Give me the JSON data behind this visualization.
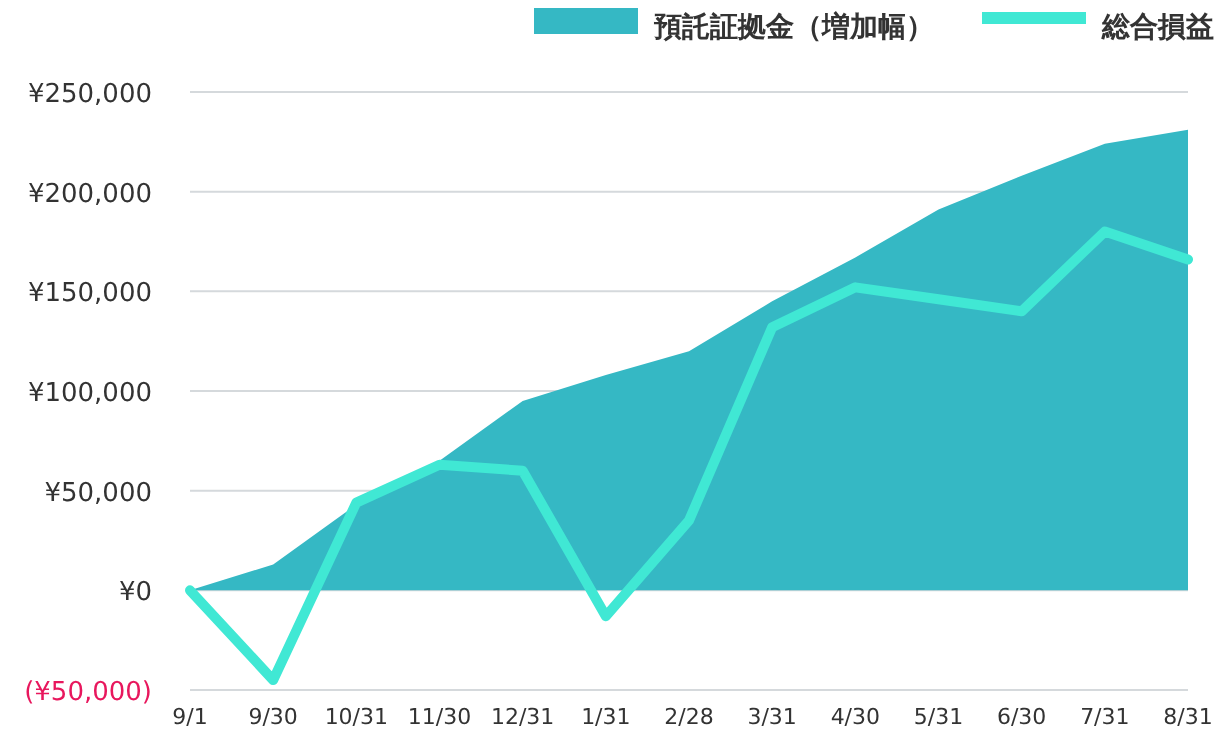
{
  "chart_data": {
    "type": "line",
    "categories": [
      "9/1",
      "9/30",
      "10/31",
      "11/30",
      "12/31",
      "1/31",
      "2/28",
      "3/31",
      "4/30",
      "5/31",
      "6/30",
      "7/31",
      "8/31"
    ],
    "series": [
      {
        "name": "預託証拠金（増加幅）",
        "type": "area",
        "color": "#35b8c4",
        "values": [
          0,
          13000,
          43000,
          65000,
          95000,
          108000,
          120000,
          145000,
          167000,
          191000,
          208000,
          224000,
          231000
        ]
      },
      {
        "name": "総合損益",
        "color": "#40e8d4",
        "values": [
          0,
          -45000,
          44000,
          63000,
          60000,
          -13000,
          35000,
          132000,
          152000,
          146000,
          140000,
          180000,
          166000
        ]
      }
    ],
    "ylim": [
      -50000,
      250000
    ],
    "yticks": [
      {
        "value": -50000,
        "label": "(¥50,000)"
      },
      {
        "value": 0,
        "label": "¥0"
      },
      {
        "value": 50000,
        "label": "¥50,000"
      },
      {
        "value": 100000,
        "label": "¥100,000"
      },
      {
        "value": 150000,
        "label": "¥150,000"
      },
      {
        "value": 200000,
        "label": "¥200,000"
      },
      {
        "value": 250000,
        "label": "¥250,000"
      }
    ],
    "grid": "y",
    "legend": "top right"
  }
}
